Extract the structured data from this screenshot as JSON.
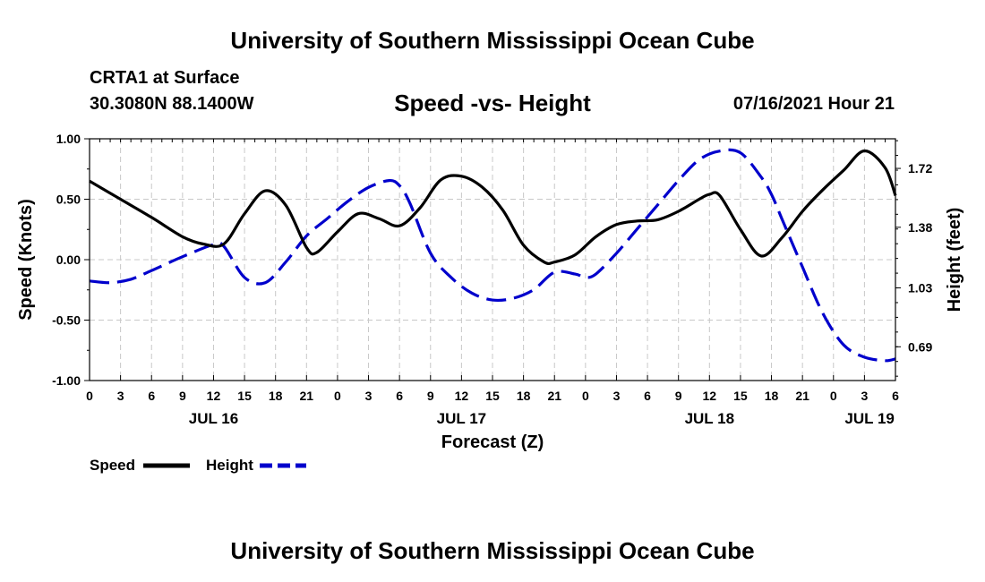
{
  "header": {
    "title": "University of Southern Mississippi Ocean Cube",
    "station": "CRTA1 at Surface",
    "coords": "30.3080N  88.1400W",
    "chart_title": "Speed -vs- Height",
    "run": "07/16/2021 Hour 21"
  },
  "footer": {
    "title": "University of Southern Mississippi Ocean Cube"
  },
  "legend": {
    "speed_label": "Speed",
    "height_label": "Height",
    "speed_color": "#000000",
    "height_color": "#0000cc"
  },
  "chart_data": {
    "type": "line",
    "title": "Speed -vs- Height",
    "xlabel": "Forecast (Z)",
    "ylabel": "Speed (Knots)",
    "y2label": "Height (feet)",
    "xlim": [
      0,
      78
    ],
    "ylim": [
      -1.0,
      1.0
    ],
    "y2lim": [
      0.495,
      1.891
    ],
    "yticks": [
      -1.0,
      -0.5,
      0.0,
      0.5,
      1.0
    ],
    "ytick_labels": [
      "-1.00",
      "-0.50",
      "0.00",
      "0.50",
      "1.00"
    ],
    "y2ticks": [
      0.69,
      1.03,
      1.38,
      1.72
    ],
    "y2tick_labels": [
      "0.69",
      "1.03",
      "1.38",
      "1.72"
    ],
    "xticks": [
      0,
      3,
      6,
      9,
      12,
      15,
      18,
      21,
      24,
      27,
      30,
      33,
      36,
      39,
      42,
      45,
      48,
      51,
      54,
      57,
      60,
      63,
      66,
      69,
      72,
      75,
      78
    ],
    "xtick_labels": [
      "0",
      "3",
      "6",
      "9",
      "12",
      "15",
      "18",
      "21",
      "0",
      "3",
      "6",
      "9",
      "12",
      "15",
      "18",
      "21",
      "0",
      "3",
      "6",
      "9",
      "12",
      "15",
      "18",
      "21",
      "0",
      "3",
      "6"
    ],
    "day_labels": [
      {
        "label": "JUL 16",
        "x": 12
      },
      {
        "label": "JUL 17",
        "x": 36
      },
      {
        "label": "JUL 18",
        "x": 60
      },
      {
        "label": "JUL 19",
        "x": 75.5
      }
    ],
    "grid": true,
    "series": [
      {
        "name": "Speed",
        "axis": "left",
        "style": "solid",
        "color": "#000000",
        "x": [
          0,
          3,
          6,
          9,
          11,
          13,
          15,
          17,
          19,
          21,
          22,
          24,
          26,
          28,
          30,
          32,
          34,
          36,
          38,
          40,
          42,
          44,
          45,
          47,
          49,
          51,
          53,
          55,
          57,
          59,
          60,
          61,
          63,
          65,
          67,
          69,
          71,
          73,
          75,
          77,
          78
        ],
        "y": [
          0.65,
          0.5,
          0.35,
          0.19,
          0.13,
          0.13,
          0.38,
          0.57,
          0.45,
          0.1,
          0.06,
          0.23,
          0.38,
          0.34,
          0.28,
          0.43,
          0.66,
          0.69,
          0.6,
          0.41,
          0.12,
          -0.02,
          -0.02,
          0.04,
          0.19,
          0.29,
          0.32,
          0.33,
          0.4,
          0.5,
          0.54,
          0.53,
          0.25,
          0.03,
          0.18,
          0.4,
          0.58,
          0.74,
          0.9,
          0.76,
          0.53
        ]
      },
      {
        "name": "Height",
        "axis": "right",
        "style": "dashed",
        "color": "#0000cc",
        "x": [
          0,
          2,
          4,
          6,
          9,
          12,
          13,
          15,
          17,
          19,
          21,
          23,
          25,
          27,
          29,
          30,
          31,
          33,
          35,
          37,
          39,
          41,
          43,
          45,
          47,
          48,
          49,
          51,
          53,
          55,
          57,
          59,
          61,
          63,
          65,
          66,
          67,
          69,
          71,
          73,
          75,
          77,
          78
        ],
        "y": [
          1.07,
          1.06,
          1.08,
          1.13,
          1.21,
          1.28,
          1.27,
          1.09,
          1.06,
          1.18,
          1.33,
          1.43,
          1.53,
          1.61,
          1.65,
          1.62,
          1.52,
          1.23,
          1.09,
          1.0,
          0.96,
          0.97,
          1.02,
          1.12,
          1.11,
          1.09,
          1.11,
          1.23,
          1.37,
          1.51,
          1.65,
          1.77,
          1.82,
          1.81,
          1.67,
          1.57,
          1.43,
          1.15,
          0.88,
          0.7,
          0.63,
          0.61,
          0.62
        ]
      }
    ]
  }
}
